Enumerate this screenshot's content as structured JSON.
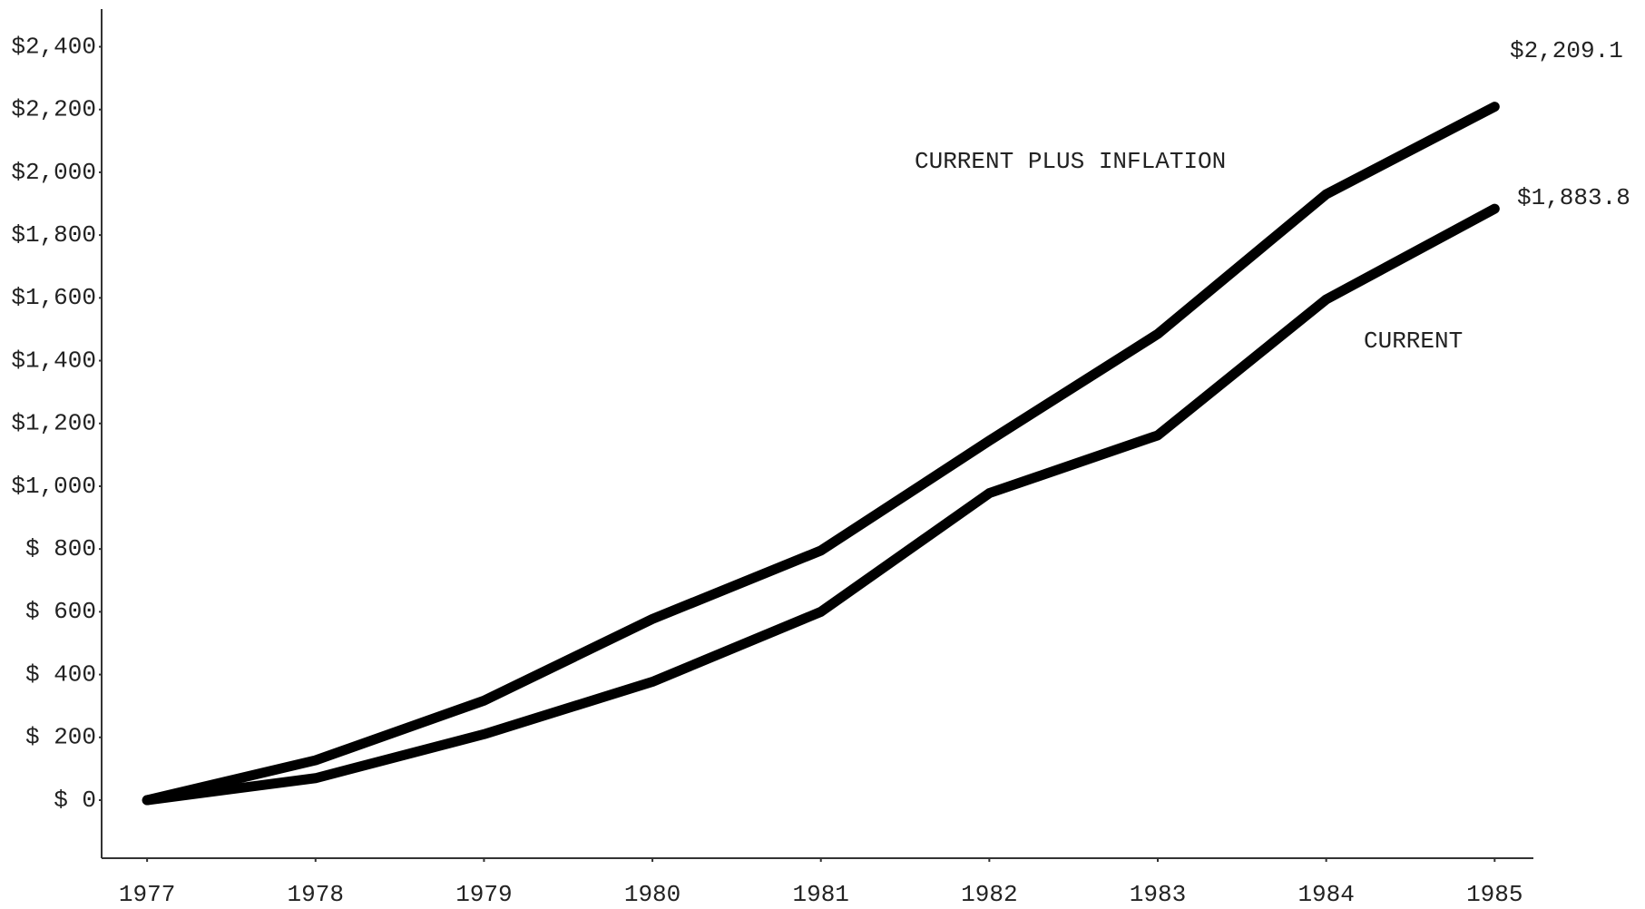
{
  "chart_data": {
    "type": "line",
    "x": [
      1977,
      1978,
      1979,
      1980,
      1981,
      1982,
      1983,
      1984,
      1985
    ],
    "series": [
      {
        "name": "CURRENT PLUS INFLATION",
        "color": "#000000",
        "values": [
          0,
          127,
          317,
          577,
          795,
          1145,
          1485,
          1930,
          2209.1
        ],
        "value_labels": [
          null,
          null,
          null,
          null,
          null,
          null,
          null,
          null,
          "$2,209.1"
        ]
      },
      {
        "name": "CURRENT",
        "color": "#000000",
        "values": [
          0,
          70,
          210,
          377,
          600,
          978,
          1162,
          1595,
          1883.8
        ],
        "value_labels": [
          null,
          null,
          null,
          null,
          null,
          null,
          null,
          null,
          "$1,883.8"
        ]
      }
    ],
    "xlim": [
      1976.73,
      1985.23
    ],
    "xticks": [
      1977,
      1978,
      1979,
      1980,
      1981,
      1982,
      1983,
      1984,
      1985
    ],
    "ylim": [
      -185,
      2520
    ],
    "yticks": [
      {
        "value": 0,
        "label": "$ 0"
      },
      {
        "value": 200,
        "label": "$ 200"
      },
      {
        "value": 400,
        "label": "$ 400"
      },
      {
        "value": 600,
        "label": "$ 600"
      },
      {
        "value": 800,
        "label": "$ 800"
      },
      {
        "value": 1000,
        "label": "$1,000"
      },
      {
        "value": 1200,
        "label": "$1,200"
      },
      {
        "value": 1400,
        "label": "$1,400"
      },
      {
        "value": 1600,
        "label": "$1,600"
      },
      {
        "value": 1800,
        "label": "$1,800"
      },
      {
        "value": 2000,
        "label": "$2,000"
      },
      {
        "value": 2200,
        "label": "$2,200"
      },
      {
        "value": 2400,
        "label": "$2,400"
      }
    ],
    "grid": false
  }
}
